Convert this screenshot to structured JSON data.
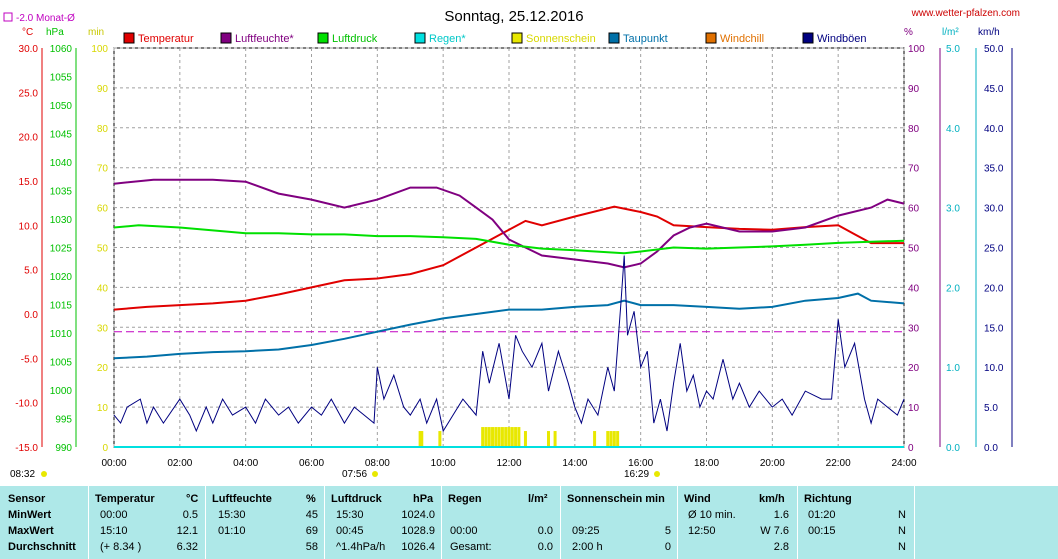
{
  "title": "Sonntag, 25.12.2016",
  "website": "www.wetter-pfalzen.com",
  "monthly_avg_label": "-2.0 Monat-Ø",
  "axis_units": {
    "temp": "°C",
    "pressure": "hPa",
    "minutes": "min",
    "percent": "%",
    "rain": "l/m²",
    "wind": "km/h"
  },
  "sun_times": {
    "sunrise": "07:56",
    "sunset": "16:29",
    "first": "08:32"
  },
  "colors": {
    "temperatur": "#e00000",
    "luftfeuchte": "#800080",
    "luftdruck": "#00e000",
    "regen": "#00e0e0",
    "sonnenschein": "#e8e800",
    "taupunkt": "#0070a8",
    "windchill": "#e07000",
    "windboeen": "#000080",
    "grid": "#a0a0a0"
  },
  "table": {
    "headers": {
      "sensor": "Sensor",
      "temperatur": "Temperatur",
      "temp_unit": "°C",
      "luftfeuchte": "Luftfeuchte",
      "hum_unit": "%",
      "luftdruck": "Luftdruck",
      "press_unit": "hPa",
      "regen": "Regen",
      "rain_unit": "l/m²",
      "sonnenschein": "Sonnenschein min",
      "wind": "Wind",
      "wind_unit": "km/h",
      "richtung": "Richtung"
    },
    "rows": [
      {
        "label": "MinWert",
        "temp_time": "00:00",
        "temp_val": "0.5",
        "hum_time": "15:30",
        "hum_val": "45",
        "press_time": "15:30",
        "press_val": "1024.0",
        "rain_time": "",
        "rain_val": "",
        "sun_time": "",
        "sun_val": "",
        "wind_time": "Ø 10 min.",
        "wind_val": "1.6",
        "dir_time": "01:20",
        "dir_val": "N"
      },
      {
        "label": "MaxWert",
        "temp_time": "15:10",
        "temp_val": "12.1",
        "hum_time": "01:10",
        "hum_val": "69",
        "press_time": "00:45",
        "press_val": "1028.9",
        "rain_time": "00:00",
        "rain_val": "0.0",
        "sun_time": "09:25",
        "sun_val": "5",
        "wind_time": "12:50",
        "wind_val": "W 7.6",
        "dir_time": "00:15",
        "dir_val": "N"
      },
      {
        "label": "Durchschnitt",
        "temp_time": "(+ 8.34 )",
        "temp_val": "6.32",
        "hum_time": "",
        "hum_val": "58",
        "press_time": "^1.4hPa/h",
        "press_val": "1026.4",
        "rain_time": "Gesamt:",
        "rain_val": "0.0",
        "sun_time": "2:00 h",
        "sun_val": "0",
        "wind_time": "",
        "wind_val": "2.8",
        "dir_time": "",
        "dir_val": "N"
      }
    ]
  },
  "chart_data": {
    "type": "line",
    "title": "Sonntag, 25.12.2016",
    "x_ticks": [
      "00:00",
      "02:00",
      "04:00",
      "06:00",
      "08:00",
      "10:00",
      "12:00",
      "14:00",
      "16:00",
      "18:00",
      "20:00",
      "22:00",
      "24:00"
    ],
    "axes": {
      "temp": {
        "unit": "°C",
        "range": [
          -15,
          30
        ],
        "ticks": [
          "30.0",
          "25.0",
          "20.0",
          "15.0",
          "10.0",
          "5.0",
          "0.0",
          "-5.0",
          "-10.0",
          "-15.0"
        ]
      },
      "pressure": {
        "unit": "hPa",
        "range": [
          990,
          1060
        ],
        "ticks": [
          "1060",
          "1055",
          "1050",
          "1045",
          "1040",
          "1035",
          "1030",
          "1025",
          "1020",
          "1015",
          "1010",
          "1005",
          "1000",
          "995",
          "990"
        ]
      },
      "sunshine": {
        "unit": "min",
        "range": [
          0,
          100
        ],
        "ticks": [
          "100",
          "90",
          "80",
          "70",
          "60",
          "50",
          "40",
          "30",
          "20",
          "10",
          "0"
        ]
      },
      "humidity": {
        "unit": "%",
        "range": [
          0,
          100
        ],
        "ticks": [
          "100",
          "90",
          "80",
          "70",
          "60",
          "50",
          "40",
          "30",
          "20",
          "10",
          "0"
        ]
      },
      "rain": {
        "unit": "l/m²",
        "range": [
          0,
          5
        ],
        "ticks": [
          "5.0",
          "4.0",
          "3.0",
          "2.0",
          "1.0",
          "0.0"
        ]
      },
      "wind": {
        "unit": "km/h",
        "range": [
          0,
          50
        ],
        "ticks": [
          "50.0",
          "45.0",
          "40.0",
          "35.0",
          "30.0",
          "25.0",
          "20.0",
          "15.0",
          "10.0",
          "5.0",
          "0.0"
        ]
      }
    },
    "legend": [
      "Temperatur",
      "Luftfeuchte*",
      "Luftdruck",
      "Regen*",
      "Sonnenschein",
      "Taupunkt",
      "Windchill",
      "Windböen"
    ],
    "monthly_avg_temp": -2.0,
    "series": [
      {
        "name": "Temperatur",
        "axis": "temp",
        "points": [
          [
            0,
            0.5
          ],
          [
            1,
            0.8
          ],
          [
            2,
            1.0
          ],
          [
            3,
            1.2
          ],
          [
            4,
            1.5
          ],
          [
            5,
            2.2
          ],
          [
            6,
            3.0
          ],
          [
            7,
            3.8
          ],
          [
            8,
            4.0
          ],
          [
            9,
            4.5
          ],
          [
            10,
            5.5
          ],
          [
            11,
            7.5
          ],
          [
            12,
            9.5
          ],
          [
            12.5,
            10.5
          ],
          [
            13,
            10.0
          ],
          [
            14,
            11.0
          ],
          [
            15.2,
            12.1
          ],
          [
            16,
            11.5
          ],
          [
            16.5,
            11.0
          ],
          [
            17,
            10.0
          ],
          [
            18,
            9.8
          ],
          [
            19,
            9.6
          ],
          [
            20,
            9.5
          ],
          [
            21,
            9.8
          ],
          [
            22,
            10.0
          ],
          [
            22.5,
            9.0
          ],
          [
            23,
            8.0
          ],
          [
            24,
            8.0
          ]
        ]
      },
      {
        "name": "Luftfeuchte*",
        "axis": "humidity",
        "points": [
          [
            0,
            66
          ],
          [
            1.2,
            67
          ],
          [
            2,
            67
          ],
          [
            3,
            67
          ],
          [
            4,
            66.5
          ],
          [
            5,
            63.5
          ],
          [
            6,
            62
          ],
          [
            7,
            60
          ],
          [
            8,
            62
          ],
          [
            9,
            65
          ],
          [
            9.8,
            65
          ],
          [
            10.5,
            63
          ],
          [
            11,
            60
          ],
          [
            11.5,
            57
          ],
          [
            12,
            52
          ],
          [
            13,
            48
          ],
          [
            14,
            47
          ],
          [
            15,
            46
          ],
          [
            15.5,
            45
          ],
          [
            16,
            46
          ],
          [
            16.5,
            49
          ],
          [
            17,
            53
          ],
          [
            17.5,
            55
          ],
          [
            18,
            56
          ],
          [
            19,
            54
          ],
          [
            20,
            54
          ],
          [
            21,
            55
          ],
          [
            22,
            58
          ],
          [
            23,
            60
          ],
          [
            23.5,
            62
          ],
          [
            24,
            61
          ]
        ]
      },
      {
        "name": "Luftdruck",
        "axis": "pressure",
        "points": [
          [
            0,
            1028.5
          ],
          [
            0.75,
            1028.9
          ],
          [
            2,
            1028.5
          ],
          [
            3,
            1028.0
          ],
          [
            4,
            1027.5
          ],
          [
            5,
            1027.5
          ],
          [
            6,
            1027.3
          ],
          [
            7,
            1027.3
          ],
          [
            8,
            1027.0
          ],
          [
            9,
            1027.0
          ],
          [
            10,
            1026.8
          ],
          [
            11,
            1026.5
          ],
          [
            12,
            1025.5
          ],
          [
            13,
            1024.8
          ],
          [
            14,
            1024.5
          ],
          [
            15.5,
            1024.0
          ],
          [
            16,
            1024.3
          ],
          [
            17,
            1025.0
          ],
          [
            18,
            1024.8
          ],
          [
            19,
            1025.0
          ],
          [
            20,
            1025.2
          ],
          [
            21,
            1025.5
          ],
          [
            22,
            1025.8
          ],
          [
            23,
            1026.0
          ],
          [
            24,
            1026.2
          ]
        ]
      },
      {
        "name": "Regen*",
        "axis": "rain",
        "points": [
          [
            0,
            0
          ],
          [
            24,
            0
          ]
        ]
      },
      {
        "name": "Taupunkt",
        "axis": "temp",
        "points": [
          [
            0,
            -5.0
          ],
          [
            1,
            -4.8
          ],
          [
            2,
            -4.5
          ],
          [
            3,
            -4.3
          ],
          [
            4,
            -4.2
          ],
          [
            5,
            -4.0
          ],
          [
            6,
            -3.5
          ],
          [
            7,
            -2.8
          ],
          [
            8,
            -2.0
          ],
          [
            9,
            -1.2
          ],
          [
            10,
            -0.5
          ],
          [
            11,
            0.0
          ],
          [
            12,
            0.5
          ],
          [
            13,
            0.5
          ],
          [
            14,
            0.8
          ],
          [
            15,
            1.0
          ],
          [
            15.5,
            1.5
          ],
          [
            16,
            1.0
          ],
          [
            17,
            1.0
          ],
          [
            18,
            0.8
          ],
          [
            19,
            0.6
          ],
          [
            20,
            0.8
          ],
          [
            21,
            1.5
          ],
          [
            22,
            1.8
          ],
          [
            22.6,
            2.3
          ],
          [
            23,
            1.5
          ],
          [
            24,
            1.2
          ]
        ]
      },
      {
        "name": "Windböen",
        "axis": "wind",
        "points": [
          [
            0,
            4
          ],
          [
            0.2,
            3
          ],
          [
            0.4,
            5
          ],
          [
            0.8,
            6
          ],
          [
            1.0,
            3
          ],
          [
            1.2,
            5
          ],
          [
            1.5,
            3
          ],
          [
            2,
            6
          ],
          [
            2.3,
            4
          ],
          [
            2.5,
            2
          ],
          [
            2.8,
            5
          ],
          [
            3,
            3
          ],
          [
            3.3,
            6
          ],
          [
            3.6,
            4
          ],
          [
            4,
            5
          ],
          [
            4.3,
            3
          ],
          [
            4.6,
            6
          ],
          [
            5,
            4
          ],
          [
            5.3,
            5
          ],
          [
            5.6,
            3
          ],
          [
            6,
            5
          ],
          [
            6.3,
            4
          ],
          [
            6.6,
            6
          ],
          [
            7,
            3
          ],
          [
            7.3,
            5
          ],
          [
            7.6,
            4
          ],
          [
            7.9,
            3
          ],
          [
            8.0,
            10
          ],
          [
            8.2,
            6
          ],
          [
            8.5,
            9
          ],
          [
            8.8,
            5
          ],
          [
            9.0,
            4
          ],
          [
            9.3,
            6
          ],
          [
            9.5,
            3
          ],
          [
            9.8,
            6
          ],
          [
            10,
            2
          ],
          [
            10.3,
            4
          ],
          [
            10.6,
            6
          ],
          [
            11,
            4
          ],
          [
            11.2,
            12
          ],
          [
            11.4,
            8
          ],
          [
            11.7,
            13
          ],
          [
            12,
            6
          ],
          [
            12.2,
            14
          ],
          [
            12.4,
            12
          ],
          [
            12.7,
            10
          ],
          [
            13,
            13
          ],
          [
            13.2,
            7
          ],
          [
            13.5,
            12
          ],
          [
            13.8,
            8
          ],
          [
            14,
            5
          ],
          [
            14.2,
            3
          ],
          [
            14.4,
            6
          ],
          [
            14.7,
            4
          ],
          [
            15,
            10
          ],
          [
            15.2,
            7
          ],
          [
            15.4,
            18
          ],
          [
            15.5,
            24
          ],
          [
            15.6,
            14
          ],
          [
            15.8,
            17
          ],
          [
            16,
            10
          ],
          [
            16.2,
            12
          ],
          [
            16.4,
            3
          ],
          [
            16.6,
            6
          ],
          [
            16.8,
            2
          ],
          [
            17,
            8
          ],
          [
            17.2,
            13
          ],
          [
            17.4,
            7
          ],
          [
            17.6,
            9
          ],
          [
            17.8,
            5
          ],
          [
            18,
            7
          ],
          [
            18.2,
            6
          ],
          [
            18.5,
            11
          ],
          [
            18.8,
            6
          ],
          [
            19,
            8
          ],
          [
            19.3,
            5
          ],
          [
            19.6,
            7
          ],
          [
            20,
            5
          ],
          [
            20.3,
            6
          ],
          [
            20.6,
            4
          ],
          [
            21,
            7
          ],
          [
            21.5,
            6
          ],
          [
            21.8,
            6
          ],
          [
            22,
            16
          ],
          [
            22.2,
            10
          ],
          [
            22.5,
            13
          ],
          [
            22.8,
            6
          ],
          [
            23,
            3
          ],
          [
            23.2,
            6
          ],
          [
            23.5,
            5
          ],
          [
            23.8,
            4
          ],
          [
            24,
            6
          ]
        ]
      }
    ],
    "sunshine_bars": [
      [
        9.3,
        4
      ],
      [
        9.35,
        4
      ],
      [
        9.9,
        4
      ],
      [
        11.2,
        5
      ],
      [
        11.3,
        5
      ],
      [
        11.4,
        5
      ],
      [
        11.5,
        5
      ],
      [
        11.6,
        5
      ],
      [
        11.7,
        5
      ],
      [
        11.8,
        5
      ],
      [
        11.9,
        5
      ],
      [
        12.0,
        5
      ],
      [
        12.1,
        5
      ],
      [
        12.2,
        5
      ],
      [
        12.3,
        5
      ],
      [
        12.5,
        4
      ],
      [
        13.2,
        4
      ],
      [
        13.4,
        4
      ],
      [
        14.6,
        4
      ],
      [
        15.0,
        4
      ],
      [
        15.1,
        4
      ],
      [
        15.2,
        4
      ],
      [
        15.3,
        4
      ]
    ]
  }
}
